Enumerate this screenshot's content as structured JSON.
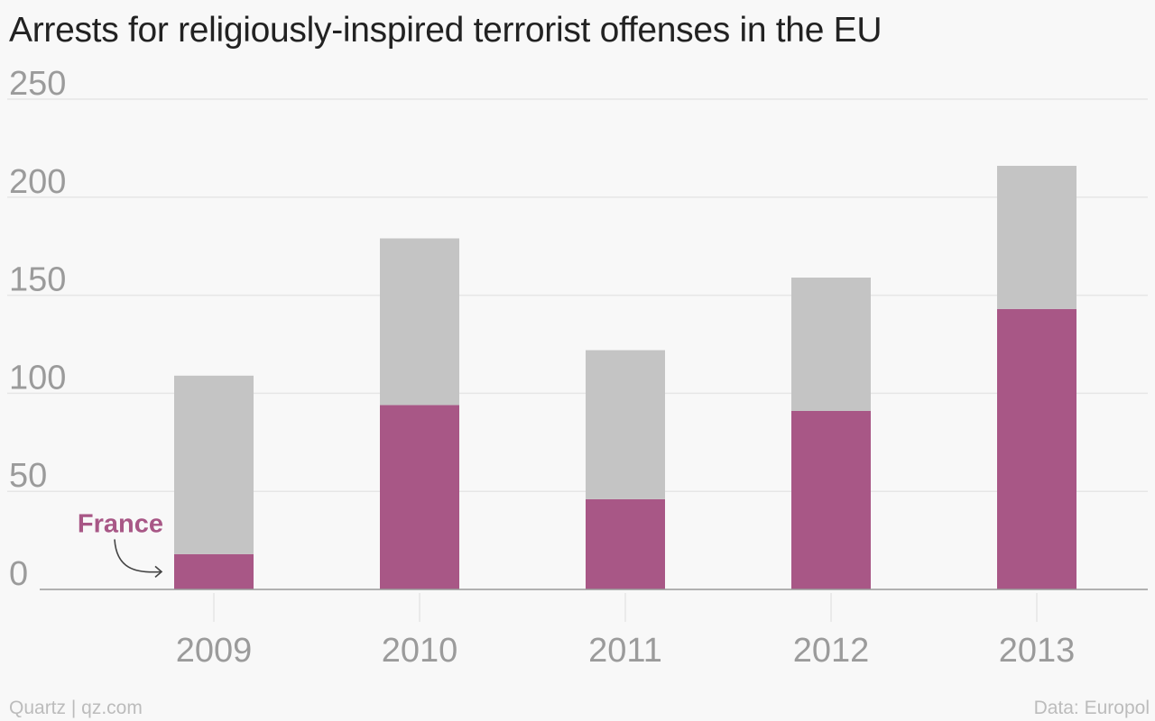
{
  "title": "Arrests for religiously-inspired terrorist offenses in the EU",
  "footer": {
    "credit": "Quartz | qz.com",
    "source": "Data: Europol"
  },
  "colors": {
    "highlight": "#a85786",
    "rest": "#c4c4c4",
    "grid": "#e6e6e6",
    "axis": "#999999",
    "tick_text": "#9b9b9b"
  },
  "chart_data": {
    "type": "bar",
    "stacked": true,
    "categories": [
      "2009",
      "2010",
      "2011",
      "2012",
      "2013"
    ],
    "series": [
      {
        "name": "France",
        "color": "#a85786",
        "values": [
          18,
          94,
          46,
          91,
          143
        ]
      },
      {
        "color": "#c4c4c4",
        "values": [
          91,
          85,
          76,
          68,
          73
        ]
      }
    ],
    "totals": [
      109,
      179,
      122,
      159,
      216
    ],
    "ylim": [
      0,
      250
    ],
    "yticks": [
      "0",
      "50",
      "100",
      "150",
      "200",
      "250"
    ],
    "grid": true,
    "annotations": [
      {
        "text": "France",
        "category": "2009",
        "series": "France"
      }
    ]
  }
}
